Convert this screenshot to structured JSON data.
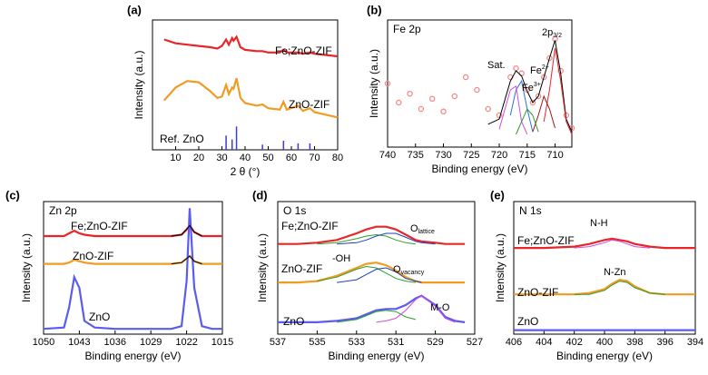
{
  "chart_data": [
    {
      "type": "line",
      "panel": "(a)",
      "x_label": "2 θ (°)",
      "y_label": "Intensity (a.u.)",
      "xlim": [
        0,
        80
      ],
      "xticks": [
        10,
        20,
        30,
        40,
        50,
        60,
        70,
        80
      ],
      "ylim": [
        0,
        100
      ],
      "x": [
        5,
        10,
        15,
        20,
        25,
        28,
        30,
        31.8,
        33,
        34.4,
        35,
        36.3,
        38,
        40,
        45,
        47.5,
        50,
        55,
        56.6,
        58,
        62.9,
        65,
        68,
        70,
        75,
        80
      ],
      "series": [
        {
          "name": "Fe;ZnO-ZIF",
          "color": "#e8262a",
          "values": [
            85,
            82,
            81,
            80,
            79,
            78,
            80,
            85,
            81,
            86,
            84,
            87,
            79,
            77,
            76,
            76,
            75,
            75,
            77,
            75,
            75,
            74,
            75,
            74,
            73,
            72
          ]
        },
        {
          "name": "ZnO-ZIF",
          "color": "#f29b22",
          "values": [
            38,
            48,
            53,
            52,
            45,
            40,
            41,
            50,
            43,
            48,
            47,
            55,
            40,
            36,
            34,
            35,
            32,
            31,
            37,
            31,
            34,
            30,
            32,
            29,
            27,
            25
          ]
        }
      ],
      "sticks": {
        "name": "Ref. ZnO",
        "color": "#3b3bdc",
        "x": [
          31.8,
          34.4,
          36.3,
          47.5,
          56.6,
          62.9,
          68
        ],
        "values": [
          11,
          8,
          18,
          4,
          7,
          5,
          5
        ]
      }
    },
    {
      "type": "line",
      "panel": "(b)",
      "title": "Fe 2p",
      "x_label": "Binding energy (eV)",
      "y_label": "Intensity (a.u.)",
      "xlim": [
        740,
        707
      ],
      "xticks": [
        740,
        735,
        730,
        725,
        720,
        715,
        710
      ],
      "ylim": [
        0,
        100
      ],
      "x": [
        740,
        738,
        736,
        734,
        732,
        730,
        728,
        726,
        724,
        722,
        720,
        718,
        717,
        716,
        715,
        714,
        713,
        712,
        711,
        710,
        709,
        708,
        707
      ],
      "series": [
        {
          "style": "points",
          "color": "#f28a8a",
          "values": [
            50,
            35,
            42,
            30,
            38,
            28,
            40,
            55,
            45,
            30,
            25,
            55,
            62,
            58,
            45,
            35,
            40,
            55,
            70,
            85,
            60,
            25,
            15
          ]
        },
        {
          "color": "#000000",
          "values": [
            null,
            null,
            null,
            null,
            null,
            null,
            null,
            null,
            null,
            18,
            22,
            52,
            60,
            56,
            44,
            35,
            40,
            55,
            70,
            84,
            58,
            22,
            12
          ]
        },
        {
          "color": "#e8262a",
          "values": [
            null,
            null,
            null,
            null,
            null,
            null,
            null,
            null,
            null,
            null,
            null,
            null,
            null,
            null,
            null,
            null,
            null,
            20,
            45,
            78,
            52,
            20,
            10
          ]
        },
        {
          "color": "#a01818",
          "values": [
            null,
            null,
            null,
            null,
            null,
            null,
            null,
            null,
            null,
            null,
            null,
            null,
            null,
            null,
            null,
            12,
            25,
            40,
            30,
            15,
            null,
            null,
            null
          ]
        },
        {
          "color": "#2f6fe0",
          "values": [
            null,
            null,
            null,
            null,
            null,
            null,
            null,
            null,
            null,
            null,
            null,
            25,
            45,
            52,
            30,
            12,
            null,
            null,
            null,
            null,
            null,
            null,
            null
          ]
        },
        {
          "color": "#d24ce0",
          "values": [
            null,
            null,
            null,
            null,
            null,
            null,
            null,
            null,
            null,
            null,
            14,
            45,
            48,
            20,
            10,
            null,
            null,
            null,
            null,
            null,
            null,
            null,
            null
          ]
        },
        {
          "color": "#2ca02c",
          "values": [
            null,
            null,
            null,
            null,
            null,
            null,
            null,
            null,
            null,
            null,
            null,
            null,
            10,
            20,
            30,
            25,
            12,
            null,
            null,
            null,
            null,
            null,
            null
          ]
        }
      ],
      "annotations": [
        {
          "text": "Sat.",
          "color": "#000000"
        },
        {
          "text": "2p",
          "sub": "3/2",
          "color": "#000000"
        },
        {
          "text": "Fe",
          "sup": "2+",
          "color": "#c01010"
        },
        {
          "text": "Fe",
          "sup": "3+",
          "color": "#c01010"
        }
      ]
    },
    {
      "type": "line",
      "panel": "(c)",
      "title": "Zn 2p",
      "x_label": "Binding energy (eV)",
      "y_label": "Intensity (a.u.)",
      "xlim": [
        1050,
        1015
      ],
      "xticks": [
        1050,
        1043,
        1036,
        1029,
        1022,
        1015
      ],
      "ylim": [
        0,
        100
      ],
      "x": [
        1050,
        1046,
        1045,
        1044,
        1043,
        1042,
        1040,
        1036,
        1029,
        1025,
        1023,
        1022,
        1021.4,
        1020.5,
        1019,
        1017,
        1015
      ],
      "series": [
        {
          "name": "Fe;ZnO-ZIF",
          "color": "#e8262a",
          "values": [
            74,
            74,
            76,
            78,
            76,
            75,
            74,
            74,
            74,
            74,
            75,
            79,
            82,
            77,
            74,
            74,
            74
          ]
        },
        {
          "name": "ZnO-ZIF",
          "color": "#f29b22",
          "values": [
            53,
            53,
            54,
            56,
            55,
            54,
            53,
            53,
            53,
            53,
            54,
            57,
            59,
            55,
            53,
            53,
            53
          ]
        },
        {
          "name": "ZnO",
          "color": "#5b5bef",
          "values": [
            4,
            5,
            20,
            43,
            35,
            10,
            5,
            4,
            4,
            4,
            6,
            40,
            95,
            35,
            6,
            4,
            4
          ]
        },
        {
          "color": "#000000",
          "values": [
            null,
            null,
            null,
            null,
            null,
            null,
            null,
            null,
            null,
            74,
            75,
            79,
            82,
            77,
            74,
            null,
            null
          ]
        },
        {
          "color": "#000000",
          "values": [
            null,
            null,
            null,
            null,
            null,
            null,
            null,
            null,
            null,
            53,
            54,
            57,
            59,
            55,
            53,
            null,
            null
          ]
        }
      ]
    },
    {
      "type": "line",
      "panel": "(d)",
      "title": "O 1s",
      "x_label": "Binding energy (eV)",
      "y_label": "Intensity (a.u.)",
      "xlim": [
        537,
        527
      ],
      "xticks": [
        537,
        535,
        533,
        531,
        529,
        527
      ],
      "ylim": [
        0,
        100
      ],
      "x": [
        537,
        536,
        535,
        534,
        533,
        532.5,
        532,
        531.5,
        531,
        530.5,
        530,
        529.7,
        529,
        528.5,
        528,
        527.5
      ],
      "series": [
        {
          "name": "Fe;ZnO-ZIF",
          "color": "#e8262a",
          "values": [
            68,
            68,
            69,
            71,
            76,
            79,
            81,
            81,
            79,
            75,
            71,
            70,
            69,
            68,
            68,
            68
          ]
        },
        {
          "color": "#2ca02c",
          "values": [
            null,
            null,
            68,
            69,
            72,
            74,
            75,
            74,
            71,
            69,
            68,
            null,
            null,
            null,
            null,
            null
          ]
        },
        {
          "color": "#1f3fbf",
          "values": [
            null,
            null,
            null,
            68,
            69,
            71,
            74,
            76,
            76,
            73,
            70,
            69,
            68,
            null,
            null,
            null
          ]
        },
        {
          "name": "ZnO-ZIF",
          "color": "#f29b22",
          "values": [
            39,
            39,
            40,
            44,
            50,
            53,
            54,
            52,
            48,
            43,
            40,
            39,
            39,
            39,
            39,
            39
          ]
        },
        {
          "color": "#2ca02c",
          "values": [
            null,
            null,
            40,
            43,
            49,
            51,
            50,
            46,
            42,
            40,
            39,
            null,
            null,
            null,
            null,
            null
          ]
        },
        {
          "color": "#1f3fbf",
          "values": [
            null,
            null,
            null,
            39,
            41,
            45,
            49,
            50,
            47,
            42,
            40,
            39,
            null,
            null,
            null,
            null
          ]
        },
        {
          "name": "ZnO",
          "color": "#5b5bef",
          "values": [
            9,
            9,
            9,
            10,
            12,
            15,
            18,
            19,
            19,
            22,
            27,
            29,
            22,
            13,
            10,
            9
          ]
        },
        {
          "color": "#2ca02c",
          "values": [
            null,
            null,
            null,
            9,
            11,
            14,
            17,
            18,
            17,
            13,
            11,
            null,
            null,
            null,
            null,
            null
          ]
        },
        {
          "color": "#d24ce0",
          "values": [
            null,
            null,
            null,
            null,
            null,
            null,
            9,
            10,
            12,
            18,
            26,
            29,
            21,
            12,
            9,
            null
          ]
        }
      ],
      "annotations": [
        {
          "text": "-OH",
          "color": "#8b4513"
        },
        {
          "text": "O",
          "sub": "lattice",
          "color": "#e8262a"
        },
        {
          "text": "O",
          "sub": "vacancy",
          "color": "#2ca02c"
        },
        {
          "text": "M-O",
          "color": "#d24ce0"
        }
      ]
    },
    {
      "type": "line",
      "panel": "(e)",
      "title": "N 1s",
      "x_label": "Binding energy (eV)",
      "y_label": "Intensity (a.u.)",
      "xlim": [
        406,
        394
      ],
      "xticks": [
        406,
        404,
        402,
        400,
        398,
        396,
        394
      ],
      "ylim": [
        0,
        100
      ],
      "x": [
        406,
        404,
        402,
        401,
        400,
        399.5,
        399,
        398.5,
        398,
        397,
        396,
        394
      ],
      "series": [
        {
          "name": "Fe;ZnO-ZIF",
          "color": "#e8262a",
          "values": [
            65,
            65,
            66,
            68,
            71,
            72,
            71,
            70,
            68,
            66,
            65,
            65
          ]
        },
        {
          "color": "#d24ce0",
          "values": [
            null,
            null,
            65,
            66,
            69,
            71,
            70,
            68,
            66,
            65,
            null,
            null
          ]
        },
        {
          "name": "ZnO-ZIF",
          "color": "#f29b22",
          "values": [
            30,
            30,
            30,
            31,
            34,
            38,
            41,
            40,
            36,
            31,
            30,
            30
          ]
        },
        {
          "color": "#2ca02c",
          "values": [
            null,
            null,
            30,
            30,
            33,
            37,
            40,
            39,
            35,
            31,
            30,
            null
          ]
        },
        {
          "name": "ZnO",
          "color": "#5b5bef",
          "values": [
            3,
            3,
            3,
            3,
            3,
            3,
            3,
            3,
            3,
            3,
            3,
            3
          ]
        }
      ],
      "annotations": [
        {
          "text": "N-H",
          "color": "#d24ce0"
        },
        {
          "text": "N-Zn",
          "color": "#2ca02c"
        }
      ]
    }
  ]
}
